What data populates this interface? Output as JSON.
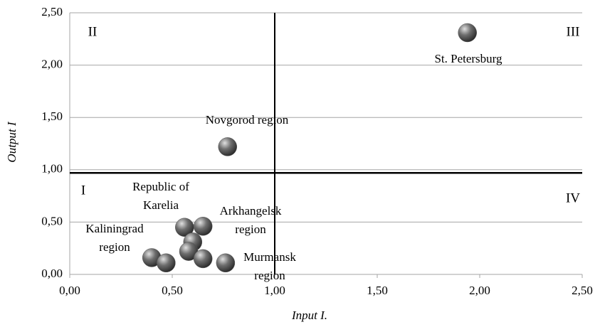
{
  "chart_data": {
    "type": "scatter",
    "x_label": "Input I.",
    "y_label": "Output I",
    "x": [
      1.94,
      0.77,
      0.56,
      0.65,
      0.6,
      0.58,
      0.65,
      0.4,
      0.47,
      0.76
    ],
    "values": [
      2.31,
      1.22,
      0.45,
      0.46,
      0.31,
      0.22,
      0.15,
      0.16,
      0.11,
      0.11
    ],
    "color": "#595959",
    "xlim": [
      0,
      2.5
    ],
    "xticks": [
      {
        "value": 0,
        "label": "0,00"
      },
      {
        "value": 0.5,
        "label": "0,50"
      },
      {
        "value": 1,
        "label": "1,00"
      },
      {
        "value": 1.5,
        "label": "1,50"
      },
      {
        "value": 2,
        "label": "2,00"
      },
      {
        "value": 2.5,
        "label": "2,50"
      }
    ],
    "ylim": [
      0,
      2.5
    ],
    "yticks": [
      {
        "value": 0,
        "label": "0,00"
      },
      {
        "value": 0.5,
        "label": "0,50"
      },
      {
        "value": 1,
        "label": "1,00"
      },
      {
        "value": 1.5,
        "label": "1,50"
      },
      {
        "value": 2,
        "label": "2,00"
      },
      {
        "value": 2.5,
        "label": "2,50"
      }
    ],
    "grid": true,
    "reference_lines": {
      "x": 1.0,
      "y": 0.97
    },
    "quadrant_labels": [
      "II",
      "III",
      "I",
      "IV"
    ],
    "annotations": [
      {
        "lines": [
          "St. Petersburg"
        ]
      },
      {
        "lines": [
          "Novgorod region"
        ]
      },
      {
        "lines": [
          "Republic of",
          "Karelia"
        ]
      },
      {
        "lines": [
          "Arkhangelsk",
          "region"
        ]
      },
      {
        "lines": [
          "Kaliningrad",
          "region"
        ]
      },
      {
        "lines": [
          "Murmansk",
          "region"
        ]
      }
    ]
  }
}
